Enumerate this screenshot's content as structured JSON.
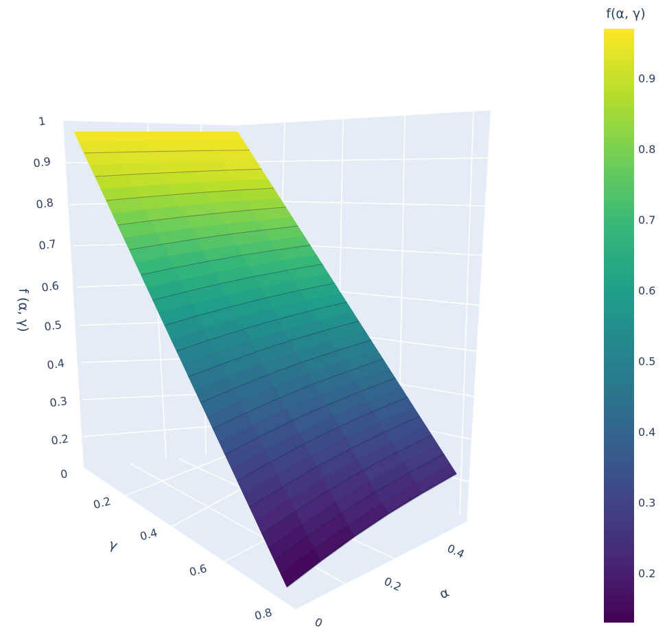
{
  "chart_data": {
    "type": "surface",
    "title": "",
    "colorscale": "Viridis",
    "colors": {
      "viridis": [
        "#440154",
        "#482878",
        "#3e4989",
        "#31688e",
        "#26828e",
        "#1f9e89",
        "#35b779",
        "#6ece58",
        "#b5de2b",
        "#fde725"
      ],
      "scene_bg": "#e5ecf6",
      "grid": "#ffffff",
      "text": "#2a3f5f"
    },
    "axes": {
      "x": {
        "title": "α",
        "range": [
          0,
          0.5
        ],
        "ticks": [
          "0",
          "0.2",
          "0.4"
        ]
      },
      "y": {
        "title": "γ",
        "range": [
          0.05,
          0.9
        ],
        "ticks": [
          "0.2",
          "0.4",
          "0.6",
          "0.8"
        ]
      },
      "z": {
        "title": "f (α, γ)",
        "range": [
          0,
          1
        ],
        "ticks": [
          "0",
          "0.2",
          "0.3",
          "0.4",
          "0.5",
          "0.6",
          "0.7",
          "0.8",
          "0.9",
          "1"
        ]
      }
    },
    "colorbar": {
      "title": "f(α, γ)",
      "range": [
        0.13,
        0.97
      ],
      "ticks": [
        "0.2",
        "0.3",
        "0.4",
        "0.5",
        "0.6",
        "0.7",
        "0.8",
        "0.9"
      ]
    },
    "series": [
      {
        "alpha": [
          0,
          0.1,
          0.2,
          0.3,
          0.4,
          0.5
        ],
        "gamma": [
          0.05,
          0.1,
          0.2,
          0.3,
          0.4,
          0.5,
          0.6,
          0.7,
          0.8,
          0.9
        ],
        "z": [
          [
            0.96,
            0.96,
            0.96,
            0.96,
            0.96,
            0.96
          ],
          [
            0.9,
            0.905,
            0.91,
            0.915,
            0.92,
            0.925
          ],
          [
            0.78,
            0.79,
            0.8,
            0.81,
            0.82,
            0.83
          ],
          [
            0.67,
            0.68,
            0.695,
            0.71,
            0.72,
            0.735
          ],
          [
            0.56,
            0.575,
            0.59,
            0.61,
            0.625,
            0.64
          ],
          [
            0.46,
            0.475,
            0.495,
            0.515,
            0.535,
            0.55
          ],
          [
            0.37,
            0.385,
            0.405,
            0.425,
            0.445,
            0.465
          ],
          [
            0.28,
            0.3,
            0.32,
            0.345,
            0.365,
            0.385
          ],
          [
            0.2,
            0.22,
            0.245,
            0.27,
            0.295,
            0.31
          ],
          [
            0.13,
            0.15,
            0.175,
            0.2,
            0.225,
            0.24
          ]
        ]
      }
    ]
  }
}
